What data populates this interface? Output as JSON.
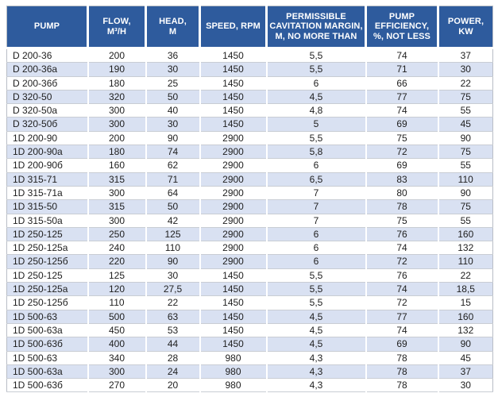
{
  "table": {
    "name": "pump-specifications-table",
    "columns": [
      {
        "id": "pump",
        "label": "PUMP"
      },
      {
        "id": "flow",
        "label": "FLOW,\nM³/H"
      },
      {
        "id": "head",
        "label": "HEAD,\nM"
      },
      {
        "id": "speed",
        "label": "SPEED, RPM"
      },
      {
        "id": "cavitation",
        "label": "PERMISSIBLE\nCAVITATION MARGIN,\nM, NO MORE THAN"
      },
      {
        "id": "efficiency",
        "label": "PUMP\nEFFICIENCY,\n%, NOT LESS"
      },
      {
        "id": "power",
        "label": "POWER,\nKW"
      }
    ],
    "rows": [
      [
        "D 200-36",
        "200",
        "36",
        "1450",
        "5,5",
        "74",
        "37"
      ],
      [
        "D 200-36a",
        "190",
        "30",
        "1450",
        "5,5",
        "71",
        "30"
      ],
      [
        "D 200-36б",
        "180",
        "25",
        "1450",
        "6",
        "66",
        "22"
      ],
      [
        "D 320-50",
        "320",
        "50",
        "1450",
        "4,5",
        "77",
        "75"
      ],
      [
        "D 320-50a",
        "300",
        "40",
        "1450",
        "4,8",
        "74",
        "55"
      ],
      [
        "D 320-50б",
        "300",
        "30",
        "1450",
        "5",
        "69",
        "45"
      ],
      [
        "1D 200-90",
        "200",
        "90",
        "2900",
        "5,5",
        "75",
        "90"
      ],
      [
        "1D 200-90a",
        "180",
        "74",
        "2900",
        "5,8",
        "72",
        "75"
      ],
      [
        "1D 200-90б",
        "160",
        "62",
        "2900",
        "6",
        "69",
        "55"
      ],
      [
        "1D 315-71",
        "315",
        "71",
        "2900",
        "6,5",
        "83",
        "110"
      ],
      [
        "1D 315-71a",
        "300",
        "64",
        "2900",
        "7",
        "80",
        "90"
      ],
      [
        "1D 315-50",
        "315",
        "50",
        "2900",
        "7",
        "78",
        "75"
      ],
      [
        "1D 315-50a",
        "300",
        "42",
        "2900",
        "7",
        "75",
        "55"
      ],
      [
        "1D 250-125",
        "250",
        "125",
        "2900",
        "6",
        "76",
        "160"
      ],
      [
        "1D 250-125a",
        "240",
        "110",
        "2900",
        "6",
        "74",
        "132"
      ],
      [
        "1D 250-125б",
        "220",
        "90",
        "2900",
        "6",
        "72",
        "110"
      ],
      [
        "1D 250-125",
        "125",
        "30",
        "1450",
        "5,5",
        "76",
        "22"
      ],
      [
        "1D 250-125a",
        "120",
        "27,5",
        "1450",
        "5,5",
        "74",
        "18,5"
      ],
      [
        "1D 250-125б",
        "110",
        "22",
        "1450",
        "5,5",
        "72",
        "15"
      ],
      [
        "1D 500-63",
        "500",
        "63",
        "1450",
        "4,5",
        "77",
        "160"
      ],
      [
        "1D 500-63a",
        "450",
        "53",
        "1450",
        "4,5",
        "74",
        "132"
      ],
      [
        "1D 500-63б",
        "400",
        "44",
        "1450",
        "4,5",
        "69",
        "90"
      ],
      [
        "1D 500-63",
        "340",
        "28",
        "980",
        "4,3",
        "78",
        "45"
      ],
      [
        "1D 500-63a",
        "300",
        "24",
        "980",
        "4,3",
        "78",
        "37"
      ],
      [
        "1D 500-63б",
        "270",
        "20",
        "980",
        "4,3",
        "78",
        "30"
      ]
    ]
  },
  "colors": {
    "header_background": "#2e5b9d",
    "header_text": "#ffffff",
    "row_alt_background": "#d9e1f2",
    "row_background": "#ffffff",
    "row_divider": "#c9cdd4",
    "body_text": "#1e1e1e"
  }
}
